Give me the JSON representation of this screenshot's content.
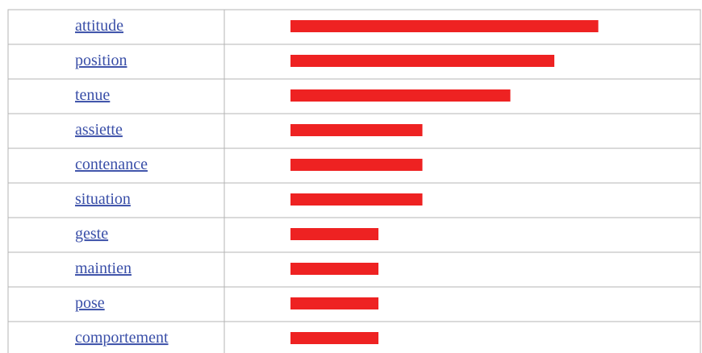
{
  "chart_data": {
    "type": "bar",
    "orientation": "horizontal",
    "color": "#ee2222",
    "categories": [
      "attitude",
      "position",
      "tenue",
      "assiette",
      "contenance",
      "situation",
      "geste",
      "maintien",
      "pose",
      "comportement"
    ],
    "values": [
      7,
      6,
      5,
      3,
      3,
      3,
      2,
      2,
      2,
      2
    ]
  }
}
